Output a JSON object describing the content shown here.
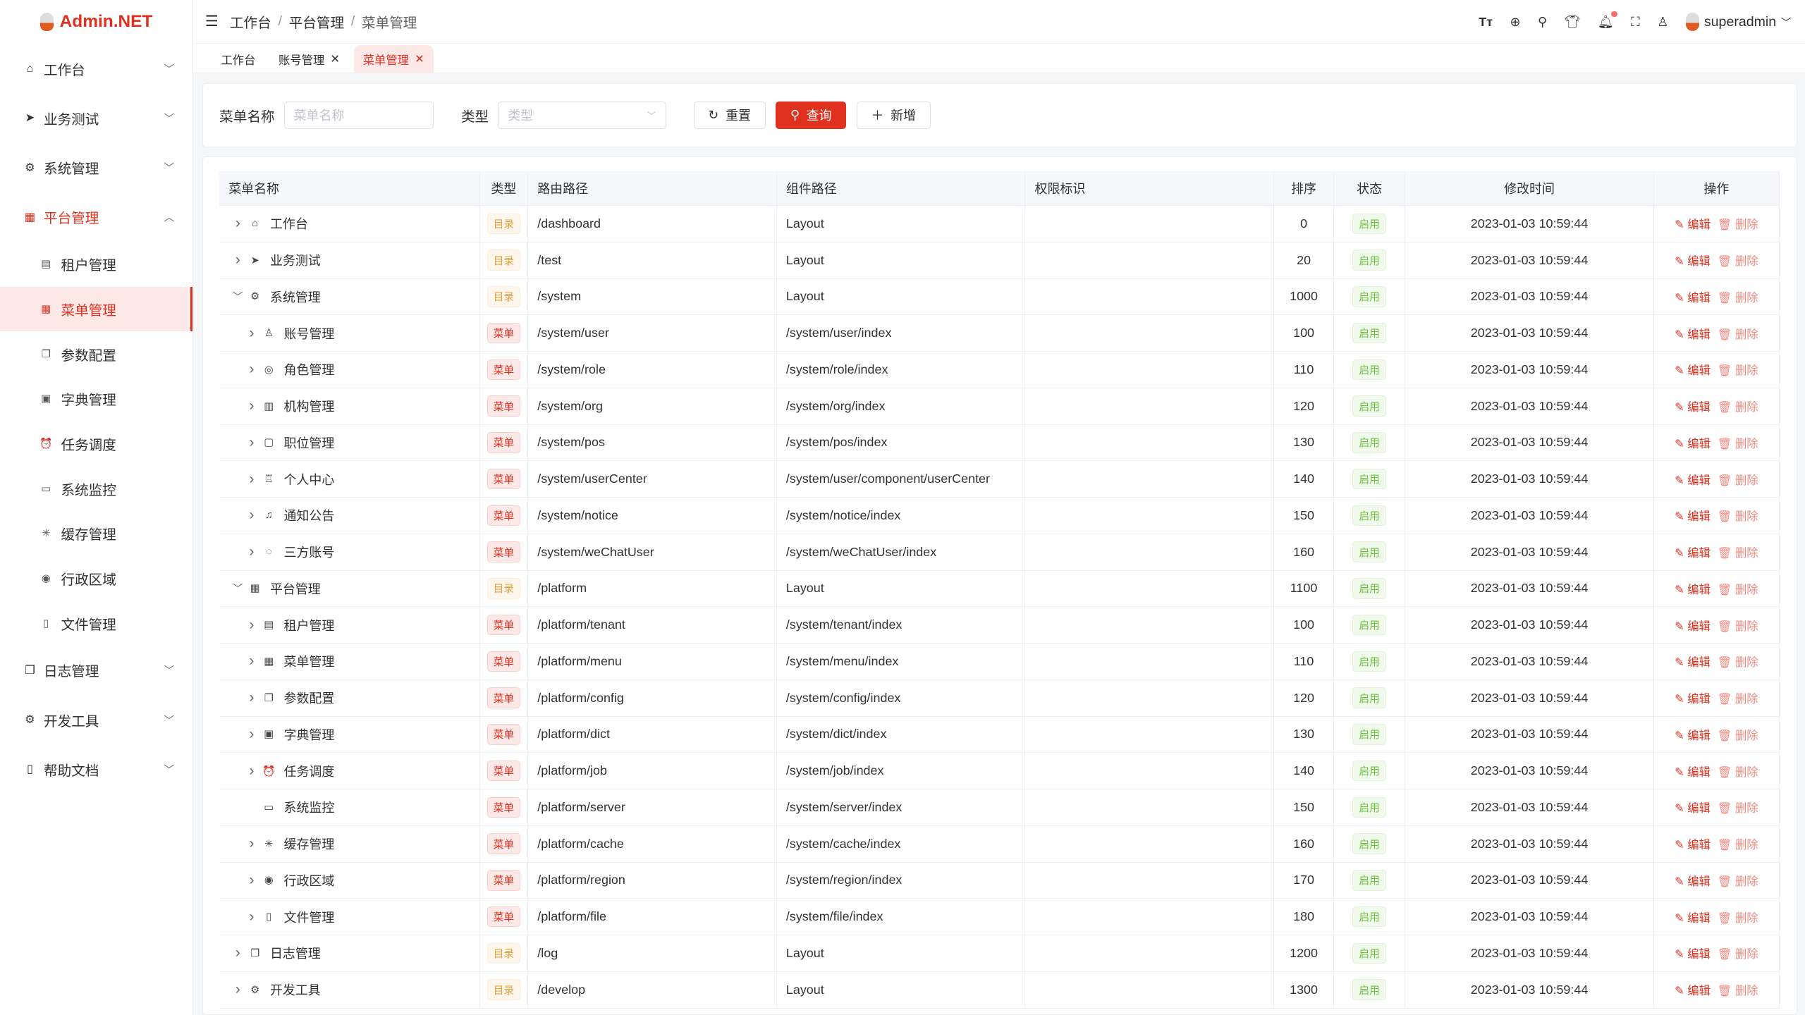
{
  "app": {
    "logo": "Admin.NET"
  },
  "sidebar": {
    "items": [
      {
        "label": "工作台",
        "icon": "home-icon",
        "glyph": "⌂"
      },
      {
        "label": "业务测试",
        "icon": "send-icon",
        "glyph": "➤"
      },
      {
        "label": "系统管理",
        "icon": "gear-icon",
        "glyph": "⚙"
      },
      {
        "label": "平台管理",
        "icon": "grid-icon",
        "glyph": "▦",
        "open": true,
        "children": [
          {
            "label": "租户管理",
            "glyph": "▤"
          },
          {
            "label": "菜单管理",
            "glyph": "▦",
            "active": true
          },
          {
            "label": "参数配置",
            "glyph": "❐"
          },
          {
            "label": "字典管理",
            "glyph": "▣"
          },
          {
            "label": "任务调度",
            "glyph": "⏰"
          },
          {
            "label": "系统监控",
            "glyph": "▭"
          },
          {
            "label": "缓存管理",
            "glyph": "✳"
          },
          {
            "label": "行政区域",
            "glyph": "◉"
          },
          {
            "label": "文件管理",
            "glyph": "▯"
          }
        ]
      },
      {
        "label": "日志管理",
        "icon": "log-icon",
        "glyph": "❐"
      },
      {
        "label": "开发工具",
        "icon": "tool-icon",
        "glyph": "⚙"
      },
      {
        "label": "帮助文档",
        "icon": "book-icon",
        "glyph": "▯"
      }
    ]
  },
  "header": {
    "breadcrumb": [
      "工作台",
      "平台管理",
      "菜单管理"
    ],
    "user": "superadmin"
  },
  "tabs": [
    {
      "label": "工作台",
      "closable": false
    },
    {
      "label": "账号管理",
      "closable": true
    },
    {
      "label": "菜单管理",
      "closable": true,
      "active": true
    }
  ],
  "search": {
    "name_label": "菜单名称",
    "name_placeholder": "菜单名称",
    "type_label": "类型",
    "type_placeholder": "类型",
    "reset": "重置",
    "query": "查询",
    "add": "新增"
  },
  "table": {
    "columns": [
      "菜单名称",
      "类型",
      "路由路径",
      "组件路径",
      "权限标识",
      "排序",
      "状态",
      "修改时间",
      "操作"
    ],
    "edit_label": "编辑",
    "delete_label": "删除",
    "rows": [
      {
        "name": "工作台",
        "level": 0,
        "expand": ">",
        "glyph": "⌂",
        "type": "目录",
        "path": "/dashboard",
        "component": "Layout",
        "perm": "",
        "order": "0",
        "status": "启用",
        "time": "2023-01-03 10:59:44"
      },
      {
        "name": "业务测试",
        "level": 0,
        "expand": ">",
        "glyph": "➤",
        "type": "目录",
        "path": "/test",
        "component": "Layout",
        "perm": "",
        "order": "20",
        "status": "启用",
        "time": "2023-01-03 10:59:44"
      },
      {
        "name": "系统管理",
        "level": 0,
        "expand": "v",
        "glyph": "⚙",
        "type": "目录",
        "path": "/system",
        "component": "Layout",
        "perm": "",
        "order": "1000",
        "status": "启用",
        "time": "2023-01-03 10:59:44"
      },
      {
        "name": "账号管理",
        "level": 1,
        "expand": ">",
        "glyph": "♙",
        "type": "菜单",
        "path": "/system/user",
        "component": "/system/user/index",
        "perm": "",
        "order": "100",
        "status": "启用",
        "time": "2023-01-03 10:59:44"
      },
      {
        "name": "角色管理",
        "level": 1,
        "expand": ">",
        "glyph": "◎",
        "type": "菜单",
        "path": "/system/role",
        "component": "/system/role/index",
        "perm": "",
        "order": "110",
        "status": "启用",
        "time": "2023-01-03 10:59:44"
      },
      {
        "name": "机构管理",
        "level": 1,
        "expand": ">",
        "glyph": "▥",
        "type": "菜单",
        "path": "/system/org",
        "component": "/system/org/index",
        "perm": "",
        "order": "120",
        "status": "启用",
        "time": "2023-01-03 10:59:44"
      },
      {
        "name": "职位管理",
        "level": 1,
        "expand": ">",
        "glyph": "▢",
        "type": "菜单",
        "path": "/system/pos",
        "component": "/system/pos/index",
        "perm": "",
        "order": "130",
        "status": "启用",
        "time": "2023-01-03 10:59:44"
      },
      {
        "name": "个人中心",
        "level": 1,
        "expand": ">",
        "glyph": "♖",
        "type": "菜单",
        "path": "/system/userCenter",
        "component": "/system/user/component/userCenter",
        "perm": "",
        "order": "140",
        "status": "启用",
        "time": "2023-01-03 10:59:44"
      },
      {
        "name": "通知公告",
        "level": 1,
        "expand": ">",
        "glyph": "♫",
        "type": "菜单",
        "path": "/system/notice",
        "component": "/system/notice/index",
        "perm": "",
        "order": "150",
        "status": "启用",
        "time": "2023-01-03 10:59:44"
      },
      {
        "name": "三方账号",
        "level": 1,
        "expand": ">",
        "glyph": "◌",
        "type": "菜单",
        "path": "/system/weChatUser",
        "component": "/system/weChatUser/index",
        "perm": "",
        "order": "160",
        "status": "启用",
        "time": "2023-01-03 10:59:44"
      },
      {
        "name": "平台管理",
        "level": 0,
        "expand": "v",
        "glyph": "▦",
        "type": "目录",
        "path": "/platform",
        "component": "Layout",
        "perm": "",
        "order": "1100",
        "status": "启用",
        "time": "2023-01-03 10:59:44"
      },
      {
        "name": "租户管理",
        "level": 1,
        "expand": ">",
        "glyph": "▤",
        "type": "菜单",
        "path": "/platform/tenant",
        "component": "/system/tenant/index",
        "perm": "",
        "order": "100",
        "status": "启用",
        "time": "2023-01-03 10:59:44"
      },
      {
        "name": "菜单管理",
        "level": 1,
        "expand": ">",
        "glyph": "▦",
        "type": "菜单",
        "path": "/platform/menu",
        "component": "/system/menu/index",
        "perm": "",
        "order": "110",
        "status": "启用",
        "time": "2023-01-03 10:59:44"
      },
      {
        "name": "参数配置",
        "level": 1,
        "expand": ">",
        "glyph": "❐",
        "type": "菜单",
        "path": "/platform/config",
        "component": "/system/config/index",
        "perm": "",
        "order": "120",
        "status": "启用",
        "time": "2023-01-03 10:59:44"
      },
      {
        "name": "字典管理",
        "level": 1,
        "expand": ">",
        "glyph": "▣",
        "type": "菜单",
        "path": "/platform/dict",
        "component": "/system/dict/index",
        "perm": "",
        "order": "130",
        "status": "启用",
        "time": "2023-01-03 10:59:44"
      },
      {
        "name": "任务调度",
        "level": 1,
        "expand": ">",
        "glyph": "⏰",
        "type": "菜单",
        "path": "/platform/job",
        "component": "/system/job/index",
        "perm": "",
        "order": "140",
        "status": "启用",
        "time": "2023-01-03 10:59:44"
      },
      {
        "name": "系统监控",
        "level": 1,
        "expand": "",
        "glyph": "▭",
        "type": "菜单",
        "path": "/platform/server",
        "component": "/system/server/index",
        "perm": "",
        "order": "150",
        "status": "启用",
        "time": "2023-01-03 10:59:44"
      },
      {
        "name": "缓存管理",
        "level": 1,
        "expand": ">",
        "glyph": "✳",
        "type": "菜单",
        "path": "/platform/cache",
        "component": "/system/cache/index",
        "perm": "",
        "order": "160",
        "status": "启用",
        "time": "2023-01-03 10:59:44"
      },
      {
        "name": "行政区域",
        "level": 1,
        "expand": ">",
        "glyph": "◉",
        "type": "菜单",
        "path": "/platform/region",
        "component": "/system/region/index",
        "perm": "",
        "order": "170",
        "status": "启用",
        "time": "2023-01-03 10:59:44"
      },
      {
        "name": "文件管理",
        "level": 1,
        "expand": ">",
        "glyph": "▯",
        "type": "菜单",
        "path": "/platform/file",
        "component": "/system/file/index",
        "perm": "",
        "order": "180",
        "status": "启用",
        "time": "2023-01-03 10:59:44"
      },
      {
        "name": "日志管理",
        "level": 0,
        "expand": ">",
        "glyph": "❐",
        "type": "目录",
        "path": "/log",
        "component": "Layout",
        "perm": "",
        "order": "1200",
        "status": "启用",
        "time": "2023-01-03 10:59:44"
      },
      {
        "name": "开发工具",
        "level": 0,
        "expand": ">",
        "glyph": "⚙",
        "type": "目录",
        "path": "/develop",
        "component": "Layout",
        "perm": "",
        "order": "1300",
        "status": "启用",
        "time": "2023-01-03 10:59:44"
      }
    ]
  },
  "colors": {
    "accent": "#e0301e",
    "dir_tag": "#e6a23c",
    "status_on": "#67c23a"
  }
}
